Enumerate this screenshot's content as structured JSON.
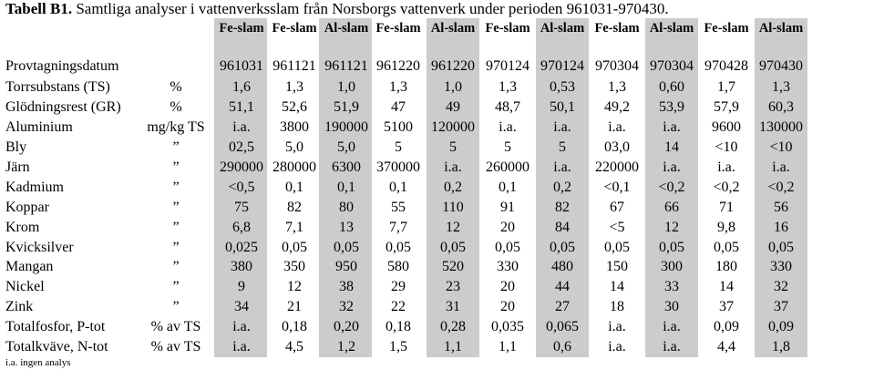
{
  "title": {
    "label": "Tabell B1.",
    "text": "Samtliga analyser i vattenverksslam från Norsborgs vattenverk under perioden 961031-970430."
  },
  "columns": [
    "Fe-slam",
    "Fe-slam",
    "Al-slam",
    "Fe-slam",
    "Al-slam",
    "Fe-slam",
    "Al-slam",
    "Fe-slam",
    "Al-slam",
    "Fe-slam",
    "Al-slam"
  ],
  "rows": [
    {
      "label": "Provtagningsdatum",
      "unit": "",
      "values": [
        "961031",
        "961121",
        "961121",
        "961220",
        "961220",
        "970124",
        "970124",
        "970304",
        "970304",
        "970428",
        "970430"
      ]
    },
    {
      "label": "Torrsubstans (TS)",
      "unit": "%",
      "values": [
        "1,6",
        "1,3",
        "1,0",
        "1,3",
        "1,0",
        "1,3",
        "0,53",
        "1,3",
        "0,60",
        "1,7",
        "1,3"
      ]
    },
    {
      "label": "Glödningsrest (GR)",
      "unit": "%",
      "values": [
        "51,1",
        "52,6",
        "51,9",
        "47",
        "49",
        "48,7",
        "50,1",
        "49,2",
        "53,9",
        "57,9",
        "60,3"
      ]
    },
    {
      "label": "Aluminium",
      "unit": "mg/kg TS",
      "values": [
        "i.a.",
        "3800",
        "190000",
        "5100",
        "120000",
        "i.a.",
        "i.a.",
        "i.a.",
        "i.a.",
        "9600",
        "130000"
      ]
    },
    {
      "label": "Bly",
      "unit": "”",
      "values": [
        "02,5",
        "5,0",
        "5,0",
        "5",
        "5",
        "5",
        "5",
        "03,0",
        "14",
        "<10",
        "<10"
      ]
    },
    {
      "label": "Järn",
      "unit": "”",
      "values": [
        "290000",
        "280000",
        "6300",
        "370000",
        "i.a.",
        "260000",
        "i.a.",
        "220000",
        "i.a.",
        "i.a.",
        "i.a."
      ]
    },
    {
      "label": "Kadmium",
      "unit": "”",
      "values": [
        "<0,5",
        "0,1",
        "0,1",
        "0,1",
        "0,2",
        "0,1",
        "0,2",
        "<0,1",
        "<0,2",
        "<0,2",
        "<0,2"
      ]
    },
    {
      "label": "Koppar",
      "unit": "”",
      "values": [
        "75",
        "82",
        "80",
        "55",
        "110",
        "91",
        "82",
        "67",
        "66",
        "71",
        "56"
      ]
    },
    {
      "label": "Krom",
      "unit": "”",
      "values": [
        "6,8",
        "7,1",
        "13",
        "7,7",
        "12",
        "20",
        "84",
        "<5",
        "12",
        "9,8",
        "16"
      ]
    },
    {
      "label": "Kvicksilver",
      "unit": "”",
      "values": [
        "0,025",
        "0,05",
        "0,05",
        "0,05",
        "0,05",
        "0,05",
        "0,05",
        "0,05",
        "0,05",
        "0,05",
        "0,05"
      ]
    },
    {
      "label": "Mangan",
      "unit": "”",
      "values": [
        "380",
        "350",
        "950",
        "580",
        "520",
        "330",
        "480",
        "150",
        "300",
        "180",
        "330"
      ]
    },
    {
      "label": "Nickel",
      "unit": "”",
      "values": [
        "9",
        "12",
        "38",
        "29",
        "23",
        "20",
        "44",
        "14",
        "33",
        "14",
        "32"
      ]
    },
    {
      "label": "Zink",
      "unit": "”",
      "values": [
        "34",
        "21",
        "32",
        "22",
        "31",
        "20",
        "27",
        "18",
        "30",
        "37",
        "37"
      ]
    },
    {
      "label": "Totalfosfor, P-tot",
      "unit": "% av TS",
      "values": [
        "i.a.",
        "0,18",
        "0,20",
        "0,18",
        "0,28",
        "0,035",
        "0,065",
        "i.a.",
        "i.a.",
        "0,09",
        "0,09"
      ]
    },
    {
      "label": "Totalkväve, N-tot",
      "unit": "% av TS",
      "values": [
        "i.a.",
        "4,5",
        "1,2",
        "1,5",
        "1,1",
        "1,1",
        "0,6",
        "i.a.",
        "i.a.",
        "4,4",
        "1,8"
      ]
    }
  ],
  "footnote": "i.a. ingen analys",
  "colors": {
    "shade": "#cccccc",
    "text": "#000000"
  }
}
